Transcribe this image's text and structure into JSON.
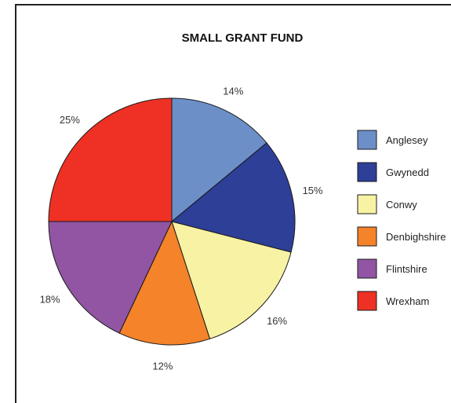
{
  "chart_data": {
    "type": "pie",
    "title": "SMALL GRANT FUND",
    "legend_position": "right",
    "slices": [
      {
        "label": "Anglesey",
        "value": 14,
        "value_label": "14%",
        "color": "#6d8fc8"
      },
      {
        "label": "Gwynedd",
        "value": 15,
        "value_label": "15%",
        "color": "#2e3f98"
      },
      {
        "label": "Conwy",
        "value": 16,
        "value_label": "16%",
        "color": "#f8f2a4"
      },
      {
        "label": "Denbighshire",
        "value": 12,
        "value_label": "12%",
        "color": "#f5832a"
      },
      {
        "label": "Flintshire",
        "value": 18,
        "value_label": "18%",
        "color": "#9155a4"
      },
      {
        "label": "Wrexham",
        "value": 25,
        "value_label": "25%",
        "color": "#ee3124"
      }
    ]
  }
}
